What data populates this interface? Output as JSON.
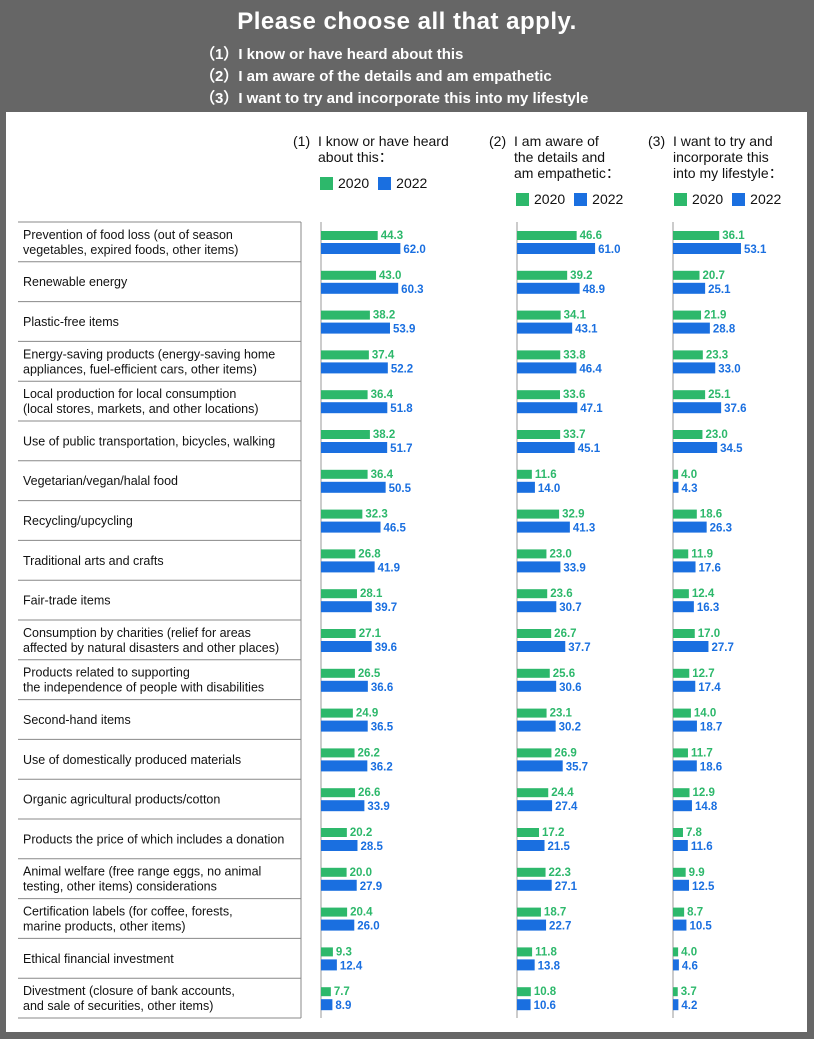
{
  "header": {
    "title": "Please choose all that apply.",
    "options": [
      "（1）I know or have heard about this",
      "（2）I am aware of the details and am empathetic",
      "（3）I want to try and incorporate this into my lifestyle"
    ]
  },
  "colors": {
    "y2020": "#2db86b",
    "y2022": "#1a6fe0",
    "header_bg": "#666666",
    "line": "#888888"
  },
  "chart_data": {
    "type": "bar",
    "orientation": "horizontal",
    "title": "Please choose all that apply.",
    "legend": [
      "2020",
      "2022"
    ],
    "groups": [
      {
        "num": "(1)",
        "label_lines": [
          "I know or have heard",
          "about this："
        ]
      },
      {
        "num": "(2)",
        "label_lines": [
          "I am aware of",
          "the details and",
          "am empathetic："
        ]
      },
      {
        "num": "(3)",
        "label_lines": [
          "I want to try and",
          "incorporate this",
          "into my lifestyle："
        ]
      }
    ],
    "categories": [
      [
        "Prevention of food loss (out of season",
        "vegetables, expired foods, other items)"
      ],
      [
        "Renewable energy"
      ],
      [
        "Plastic-free items"
      ],
      [
        "Energy-saving products (energy-saving home",
        "appliances, fuel-efficient cars, other items)"
      ],
      [
        "Local production for local consumption",
        "(local stores, markets, and other locations)"
      ],
      [
        "Use of public transportation, bicycles, walking"
      ],
      [
        "Vegetarian/vegan/halal food"
      ],
      [
        "Recycling/upcycling"
      ],
      [
        "Traditional arts and crafts"
      ],
      [
        "Fair-trade items"
      ],
      [
        "Consumption by charities (relief for areas",
        "affected by natural disasters and other places)"
      ],
      [
        "Products related to supporting",
        "the independence of people with disabilities"
      ],
      [
        "Second-hand items"
      ],
      [
        "Use of domestically produced materials"
      ],
      [
        "Organic agricultural products/cotton"
      ],
      [
        "Products the price of which includes a donation"
      ],
      [
        "Animal welfare (free range eggs, no animal",
        "testing, other items) considerations"
      ],
      [
        "Certification labels (for coffee, forests,",
        "marine products, other items)"
      ],
      [
        "Ethical financial investment"
      ],
      [
        "Divestment (closure of bank accounts,",
        "and sale of securities, other items)"
      ]
    ],
    "series": [
      {
        "group": 1,
        "name": "2020",
        "values": [
          44.3,
          43.0,
          38.2,
          37.4,
          36.4,
          38.2,
          36.4,
          32.3,
          26.8,
          28.1,
          27.1,
          26.5,
          24.9,
          26.2,
          26.6,
          20.2,
          20.0,
          20.4,
          9.3,
          7.7
        ]
      },
      {
        "group": 1,
        "name": "2022",
        "values": [
          62.0,
          60.3,
          53.9,
          52.2,
          51.8,
          51.7,
          50.5,
          46.5,
          41.9,
          39.7,
          39.6,
          36.6,
          36.5,
          36.2,
          33.9,
          28.5,
          27.9,
          26.0,
          12.4,
          8.9
        ]
      },
      {
        "group": 2,
        "name": "2020",
        "values": [
          46.6,
          39.2,
          34.1,
          33.8,
          33.6,
          33.7,
          11.6,
          32.9,
          23.0,
          23.6,
          26.7,
          25.6,
          23.1,
          26.9,
          24.4,
          17.2,
          22.3,
          18.7,
          11.8,
          10.8
        ]
      },
      {
        "group": 2,
        "name": "2022",
        "values": [
          61.0,
          48.9,
          43.1,
          46.4,
          47.1,
          45.1,
          14.0,
          41.3,
          33.9,
          30.7,
          37.7,
          30.6,
          30.2,
          35.7,
          27.4,
          21.5,
          27.1,
          22.7,
          13.8,
          10.6
        ]
      },
      {
        "group": 3,
        "name": "2020",
        "values": [
          36.1,
          20.7,
          21.9,
          23.3,
          25.1,
          23.0,
          4.0,
          18.6,
          11.9,
          12.4,
          17.0,
          12.7,
          14.0,
          11.7,
          12.9,
          7.8,
          9.9,
          8.7,
          4.0,
          3.7
        ]
      },
      {
        "group": 3,
        "name": "2022",
        "values": [
          53.1,
          25.1,
          28.8,
          33.0,
          37.6,
          34.5,
          4.3,
          26.3,
          17.6,
          16.3,
          27.7,
          17.4,
          18.7,
          18.6,
          14.8,
          11.6,
          12.5,
          10.5,
          4.6,
          4.2
        ]
      }
    ],
    "xlim": [
      0,
      100
    ]
  }
}
